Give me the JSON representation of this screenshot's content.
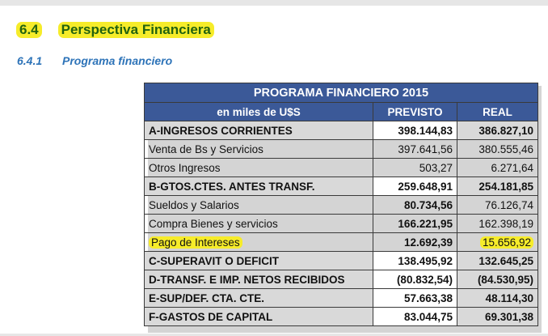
{
  "heading": {
    "number": "6.4",
    "title": "Perspectiva Financiera"
  },
  "subheading": {
    "number": "6.4.1",
    "title": "Programa financiero"
  },
  "table": {
    "title": "PROGRAMA FINANCIERO 2015",
    "columns": [
      "en miles de U$S",
      "PREVISTO",
      "REAL"
    ],
    "rows": [
      {
        "label": "A-INGRESOS CORRIENTES",
        "previsto": "398.144,83",
        "real": "386.827,10"
      },
      {
        "label": "Venta de Bs y Servicios",
        "previsto": "397.641,56",
        "real": "380.555,46"
      },
      {
        "label": "Otros Ingresos",
        "previsto": "503,27",
        "real": "6.271,64"
      },
      {
        "label": "B-GTOS.CTES. ANTES TRANSF.",
        "previsto": "259.648,91",
        "real": "254.181,85"
      },
      {
        "label": "Sueldos y Salarios",
        "previsto": "80.734,56",
        "real": "76.126,74"
      },
      {
        "label": "Compra Bienes y servicios",
        "previsto": "166.221,95",
        "real": "162.398,19"
      },
      {
        "label": "Pago de Intereses",
        "previsto": "12.692,39",
        "real": "15.656,92"
      },
      {
        "label": "C-SUPERAVIT O DEFICIT",
        "previsto": "138.495,92",
        "real": "132.645,25"
      },
      {
        "label": "D-TRANSF. E IMP. NETOS RECIBIDOS",
        "previsto": "(80.832,54)",
        "real": "(84.530,95)"
      },
      {
        "label": "E-SUP/DEF. CTA. CTE.",
        "previsto": "57.663,38",
        "real": "48.114,30"
      },
      {
        "label": "F-GASTOS DE CAPITAL",
        "previsto": "83.044,75",
        "real": "69.301,38"
      }
    ]
  },
  "colors": {
    "header_blue": "#3b5998",
    "highlight_yellow": "#f6ec2a",
    "heading_green": "#22620f",
    "subheading_blue": "#2d73b8"
  }
}
